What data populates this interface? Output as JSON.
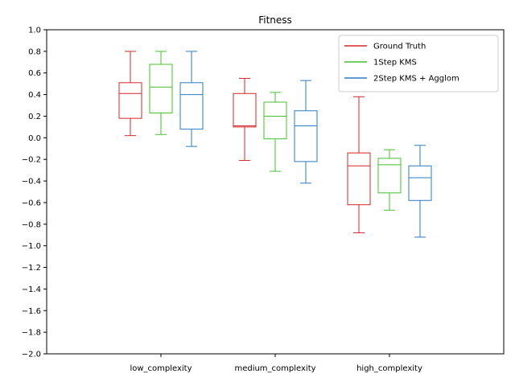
{
  "chart_data": {
    "type": "box",
    "title": "Fitness",
    "xlabel": "",
    "ylabel": "",
    "ylim": [
      -2.0,
      1.0
    ],
    "yticks": [
      1.0,
      0.8,
      0.6,
      0.4,
      0.2,
      0.0,
      -0.2,
      -0.4,
      -0.6,
      -0.8,
      -1.0,
      -1.2,
      -1.4,
      -1.6,
      -1.8,
      -2.0
    ],
    "ytick_labels": [
      "1.0",
      "0.8",
      "0.6",
      "0.4",
      "0.2",
      "0.0",
      "−0.2",
      "−0.4",
      "−0.6",
      "−0.8",
      "−1.0",
      "−1.2",
      "−1.4",
      "−1.6",
      "−1.8",
      "−2.0"
    ],
    "categories": [
      "low_complexity",
      "medium_complexity",
      "high_complexity"
    ],
    "legend_position": "top-right",
    "grid": false,
    "series": [
      {
        "name": "Ground Truth",
        "color": "#d62728",
        "boxes": [
          {
            "whislo": 0.02,
            "q1": 0.18,
            "med": 0.41,
            "q3": 0.51,
            "whishi": 0.8
          },
          {
            "whislo": -0.21,
            "q1": 0.1,
            "med": 0.11,
            "q3": 0.41,
            "whishi": 0.55
          },
          {
            "whislo": -0.88,
            "q1": -0.62,
            "med": -0.26,
            "q3": -0.14,
            "whishi": 0.38
          }
        ]
      },
      {
        "name": "1Step KMS",
        "color": "#44c12e",
        "boxes": [
          {
            "whislo": 0.03,
            "q1": 0.23,
            "med": 0.47,
            "q3": 0.68,
            "whishi": 0.8
          },
          {
            "whislo": -0.31,
            "q1": -0.01,
            "med": 0.2,
            "q3": 0.33,
            "whishi": 0.42
          },
          {
            "whislo": -0.67,
            "q1": -0.51,
            "med": -0.25,
            "q3": -0.19,
            "whishi": -0.11
          }
        ]
      },
      {
        "name": "2Step KMS + Agglom",
        "color": "#2b7bc4",
        "boxes": [
          {
            "whislo": -0.08,
            "q1": 0.08,
            "med": 0.4,
            "q3": 0.51,
            "whishi": 0.8
          },
          {
            "whislo": -0.42,
            "q1": -0.22,
            "med": 0.11,
            "q3": 0.25,
            "whishi": 0.53
          },
          {
            "whislo": -0.92,
            "q1": -0.58,
            "med": -0.37,
            "q3": -0.26,
            "whishi": -0.07
          }
        ]
      }
    ]
  }
}
